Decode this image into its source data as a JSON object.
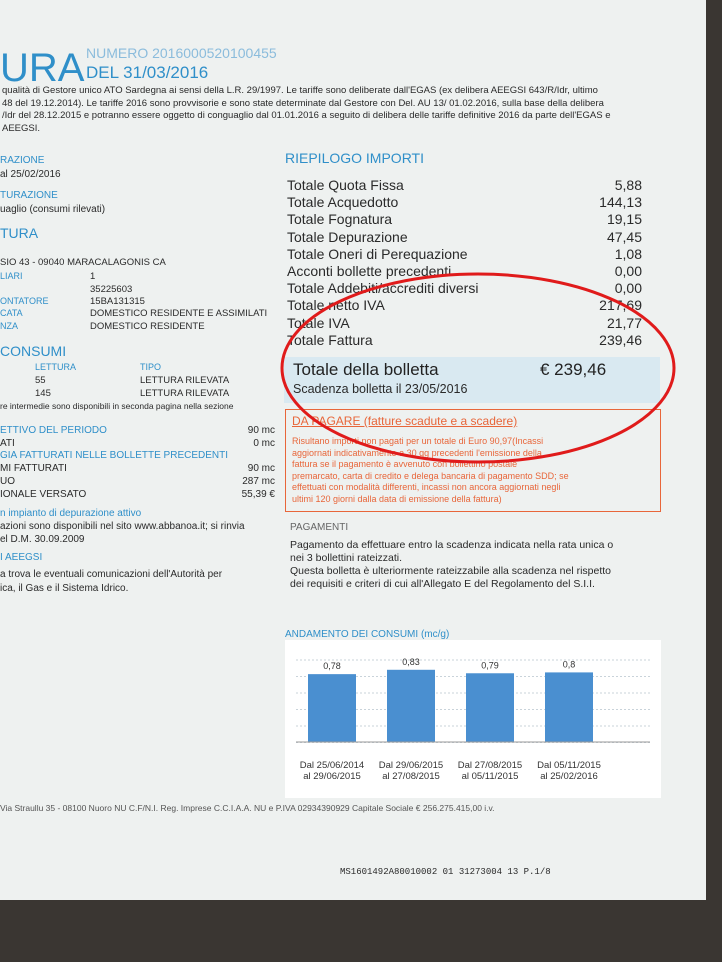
{
  "header": {
    "title": "URA",
    "number": "NUMERO 2016000520100455",
    "date": "DEL 31/03/2016"
  },
  "intro": [
    "qualità di Gestore unico ATO Sardegna ai sensi della L.R. 29/1997. Le tariffe sono deliberate dall'EGAS (ex delibera AEEGSI 643/R/Idr, ultimo",
    "48 del 19.12.2014). Le tariffe 2016 sono provvisorie e sono state determinate dal Gestore con Del. AU 13/ 01.02.2016, sulla base della delibera",
    "/Idr del 28.12.2015 e potranno essere oggetto di conguaglio dal 01.01.2016 a seguito di delibera delle tariffe definitive 2016 da parte dell'EGAS e",
    "AEEGSI."
  ],
  "left": [
    "RAZIONE",
    "al 25/02/2016",
    "TURAZIONE",
    "uaglio (consumi rilevati)",
    "TURA",
    "SIO 43 - 09040 MARACALAGONIS CA",
    "LIARI",
    "1",
    "35225603",
    "ONTATORE",
    "15BA131315",
    "CATA",
    "DOMESTICO RESIDENTE E ASSIMILATI",
    "NZA",
    "DOMESTICO RESIDENTE",
    "CONSUMI",
    "LETTURA",
    "TIPO",
    "55",
    "LETTURA RILEVATA",
    "145",
    "LETTURA RILEVATA",
    "re intermedie sono disponibili in seconda pagina nella sezione",
    "ETTIVO DEL PERIODO",
    "90 mc",
    "ATI",
    "0 mc",
    "GIA FATTURATI NELLE BOLLETTE PRECEDENTI",
    "MI FATTURATI",
    "90 mc",
    "UO",
    "287 mc",
    "IONALE VERSATO",
    "55,39 €",
    "n impianto di depurazione attivo",
    "azioni sono disponibili nel sito www.abbanoa.it; si rinvia",
    "el D.M. 30.09.2009",
    "I AEEGSI",
    "a trova le eventuali comunicazioni dell'Autorità per",
    "ica, il Gas e il Sistema Idrico."
  ],
  "summary": {
    "title": "RIEPILOGO IMPORTI",
    "rows": [
      [
        "Totale Quota Fissa",
        "5,88"
      ],
      [
        "Totale Acquedotto",
        "144,13"
      ],
      [
        "Totale Fognatura",
        "19,15"
      ],
      [
        "Totale Depurazione",
        "47,45"
      ],
      [
        "Totale Oneri di Perequazione",
        "1,08"
      ],
      [
        "Acconti bollette precedenti",
        "0,00"
      ],
      [
        "Totale Addebiti/accrediti diversi",
        "0,00"
      ],
      [
        "Totale netto IVA",
        "217,69"
      ],
      [
        "Totale IVA",
        "21,77"
      ],
      [
        "Totale Fattura",
        "239,46"
      ]
    ],
    "total_label": "Totale della bolletta",
    "total_amount": "€ 239,46",
    "due": "Scadenza bolletta il 23/05/2016"
  },
  "unpaid": {
    "title": "DA PAGARE (fatture scadute e a scadere)",
    "lines": [
      "Risultano importi non pagati per un totale di Euro 90,97(Incassi",
      "aggiornati indicativamente a 30 gg precedenti l'emissione della",
      "fattura se il pagamento è avvenuto con bollettino postale",
      "premarcato, carta di credito e delega bancaria di pagamento SDD; se",
      "effettuati con modalità differenti, incassi non ancora aggiornati negli",
      "ultimi 120 giorni dalla data di emissione della fattura)"
    ]
  },
  "payments": {
    "title": "PAGAMENTI",
    "lines": [
      "Pagamento da effettuare entro la scadenza indicata nella rata unica o",
      "nei 3 bollettini rateizzati.",
      "Questa bolletta è ulteriormente rateizzabile alla scadenza nel rispetto",
      "dei requisiti e criteri di cui all'Allegato E del Regolamento del S.I.I."
    ]
  },
  "chart": {
    "title": "ANDAMENTO DEI CONSUMI (mc/g)",
    "categories": [
      [
        "Dal 25/06/2014",
        "al 29/06/2015"
      ],
      [
        "Dal 29/06/2015",
        "al 27/08/2015"
      ],
      [
        "Dal 27/08/2015",
        "al 05/11/2015"
      ],
      [
        "Dal 05/11/2015",
        "al 25/02/2016"
      ]
    ],
    "values": [
      0.78,
      0.83,
      0.79,
      0.8
    ],
    "value_labels": [
      "0,78",
      "0,83",
      "0,79",
      "0,8"
    ],
    "color": "#4a8fd0"
  },
  "footer": "Via Straullu 35 - 08100 Nuoro NU C.F/N.I. Reg. Imprese C.C.I.A.A. NU e P.IVA 02934390929 Capitale Sociale € 256.275.415,00 i.v.",
  "code": "MS1601492A80010002 01 31273004 13 P.1/8"
}
